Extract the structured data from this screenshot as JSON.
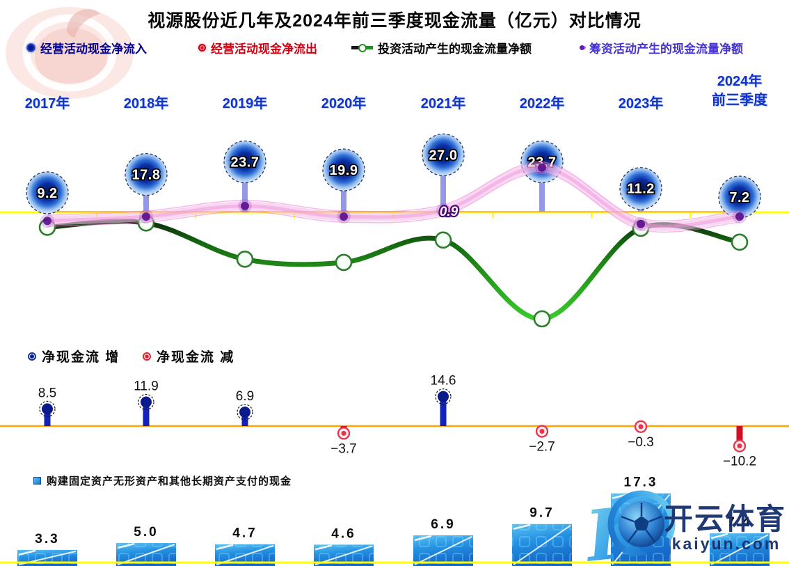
{
  "title": "视源股份近几年及2024年前三季度现金流量（亿元）对比情况",
  "unit": "亿元",
  "legend_top": [
    {
      "label": "经营活动现金净流入",
      "color": "#00008B",
      "marker": "blue-glow-dot"
    },
    {
      "label": "经营活动现金净流出",
      "color": "#cc0011",
      "marker": "red-glow-dot"
    },
    {
      "label": "投资活动产生的现金流量净额",
      "color": "#050505",
      "marker": "green-line-circle"
    },
    {
      "label": "筹资活动产生的现金流量净额",
      "color": "#4433cc",
      "marker": "purple-dot"
    }
  ],
  "categories_display": [
    "2017年",
    "2018年",
    "2019年",
    "2020年",
    "2021年",
    "2022年",
    "2023年",
    "2024年\n前三季度"
  ],
  "colors": {
    "axis_top": "#ffff00",
    "axis_mid": "#ffa500",
    "axis_bottom": "#ffff00",
    "operating_blue": "#1b3fd0",
    "invest_green": "#2aa41e",
    "financing_pink": "#ee86d6",
    "increase_blue": "#1222bb",
    "decrease_red": "#cc1122",
    "bar_blue": "#2e9be6",
    "year_label_blue": "#1133cc"
  },
  "chart_data": [
    {
      "type": "line",
      "title": "经营 / 投资 / 筹资 现金流量对比",
      "categories": [
        "2017年",
        "2018年",
        "2019年",
        "2020年",
        "2021年",
        "2022年",
        "2023年",
        "2024年前三季度"
      ],
      "ylabel": "亿元",
      "series": [
        {
          "name": "经营活动现金净流入",
          "style": "bubble-lollipop",
          "values": [
            9.2,
            17.8,
            23.7,
            19.9,
            27.0,
            23.7,
            11.2,
            7.2
          ],
          "data_labels_shown": true
        },
        {
          "name": "投资活动产生的现金流量净额",
          "style": "line-circle-markers",
          "values_estimated": [
            -7,
            -5,
            -22,
            -23.5,
            -13,
            -50,
            -7.5,
            -14
          ]
        },
        {
          "name": "筹资活动产生的现金流量净额",
          "style": "fuzzy-pink-line",
          "values_estimated": [
            -4,
            -2,
            3,
            -2,
            0.9,
            21,
            -5.5,
            -2
          ],
          "labeled_point": {
            "category": "2021年",
            "value": 0.9
          }
        }
      ]
    },
    {
      "type": "lollipop",
      "legend_increase": "净现金流 增",
      "legend_decrease": "净现金流 减",
      "categories": [
        "2017年",
        "2018年",
        "2019年",
        "2020年",
        "2021年",
        "2022年",
        "2023年",
        "2024年前三季度"
      ],
      "values": [
        8.5,
        11.9,
        6.9,
        -3.7,
        14.6,
        -2.7,
        -0.3,
        -10.2
      ]
    },
    {
      "type": "bar",
      "legend": "购建固定资产无形资产和其他长期资产支付的现金",
      "categories": [
        "2017年",
        "2018年",
        "2019年",
        "2020年",
        "2021年",
        "2022年",
        "2023年",
        "2024年前三季度"
      ],
      "values": [
        3.3,
        5.0,
        4.7,
        4.6,
        6.9,
        9.7,
        17.3,
        7.4
      ]
    }
  ],
  "watermark": {
    "brand": "开云体育",
    "domain": "kaiyun.com"
  }
}
